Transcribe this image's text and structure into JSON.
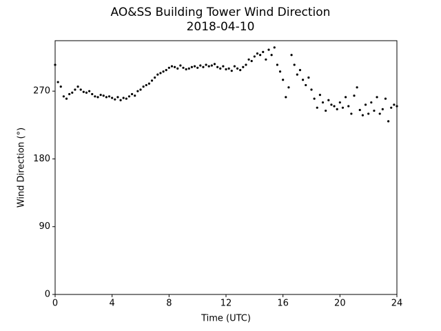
{
  "chart_data": {
    "type": "scatter",
    "title": "AO&SS Building Tower Wind Direction",
    "subtitle": "2018-04-10",
    "x_label": "Time (UTC)",
    "y_label": "Wind Direction (°)",
    "color": "#000000",
    "xlim": [
      0,
      24
    ],
    "xticks": [
      0,
      4,
      8,
      12,
      16,
      20,
      24
    ],
    "ylim": [
      0,
      337
    ],
    "yticks": [
      0,
      90,
      180,
      270
    ],
    "grid": false,
    "x": [
      0,
      0.2,
      0.4,
      0.6,
      0.8,
      1,
      1.2,
      1.4,
      1.6,
      1.8,
      2,
      2.2,
      2.4,
      2.6,
      2.8,
      3,
      3.2,
      3.4,
      3.6,
      3.8,
      4,
      4.2,
      4.4,
      4.6,
      4.8,
      5,
      5.2,
      5.4,
      5.6,
      5.8,
      6,
      6.2,
      6.4,
      6.6,
      6.8,
      7,
      7.2,
      7.4,
      7.6,
      7.8,
      8,
      8.2,
      8.4,
      8.6,
      8.8,
      9,
      9.2,
      9.4,
      9.6,
      9.8,
      10,
      10.2,
      10.4,
      10.6,
      10.8,
      11,
      11.2,
      11.4,
      11.6,
      11.8,
      12,
      12.2,
      12.4,
      12.6,
      12.8,
      13,
      13.2,
      13.4,
      13.6,
      13.8,
      14,
      14.2,
      14.4,
      14.6,
      14.8,
      15,
      15.2,
      15.4,
      15.6,
      15.8,
      16,
      16.2,
      16.4,
      16.6,
      16.8,
      17,
      17.2,
      17.4,
      17.6,
      17.8,
      18,
      18.2,
      18.4,
      18.6,
      18.8,
      19,
      19.2,
      19.4,
      19.6,
      19.8,
      20,
      20.2,
      20.4,
      20.6,
      20.8,
      21,
      21.2,
      21.4,
      21.6,
      21.8,
      22,
      22.2,
      22.4,
      22.6,
      22.8,
      23,
      23.2,
      23.4,
      23.6,
      23.8,
      24
    ],
    "values": [
      305,
      282,
      276,
      263,
      260,
      266,
      268,
      272,
      276,
      272,
      269,
      268,
      270,
      266,
      263,
      262,
      265,
      264,
      262,
      263,
      261,
      259,
      262,
      258,
      261,
      260,
      263,
      266,
      264,
      270,
      272,
      276,
      278,
      280,
      284,
      288,
      292,
      294,
      296,
      298,
      301,
      303,
      302,
      300,
      304,
      301,
      299,
      300,
      302,
      303,
      301,
      304,
      302,
      305,
      303,
      304,
      306,
      302,
      300,
      303,
      299,
      300,
      297,
      303,
      300,
      298,
      302,
      305,
      312,
      310,
      316,
      320,
      318,
      322,
      312,
      325,
      318,
      328,
      305,
      296,
      285,
      262,
      275,
      318,
      305,
      292,
      298,
      285,
      278,
      288,
      272,
      260,
      248,
      265,
      255,
      244,
      258,
      252,
      250,
      246,
      255,
      248,
      262,
      250,
      240,
      264,
      275,
      245,
      238,
      252,
      240,
      255,
      244,
      262,
      240,
      246,
      260,
      230,
      248,
      252,
      250
    ]
  }
}
